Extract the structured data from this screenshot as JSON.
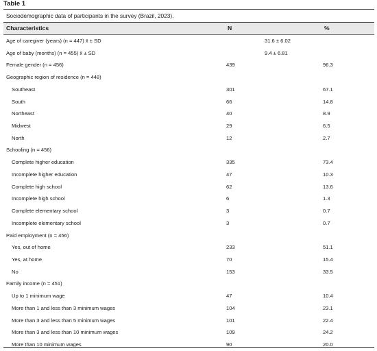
{
  "table_label": "Table 1",
  "caption": "Sociodemographic data of participants in the survey (Brazil, 2023).",
  "columns": {
    "characteristics": "Characteristics",
    "n": "N",
    "pct": "%"
  },
  "rows": [
    {
      "label": "Age of caregiver (years) (n = 447) x̄ ± SD",
      "mean": "31.6 ± 6.02"
    },
    {
      "label": "Age of baby (months) (n = 455) x̄ ± SD",
      "mean": "9.4 ± 6.81"
    },
    {
      "label": "Female gender (n = 456)",
      "n": "439",
      "pct": "96.3"
    },
    {
      "label": "Geographic region of residence (n = 448)"
    },
    {
      "label": "Southeast",
      "n": "301",
      "pct": "67.1",
      "sub": true
    },
    {
      "label": "South",
      "n": "66",
      "pct": "14.8",
      "sub": true
    },
    {
      "label": "Northeast",
      "n": "40",
      "pct": "8.9",
      "sub": true
    },
    {
      "label": "Midwest",
      "n": "29",
      "pct": "6.5",
      "sub": true
    },
    {
      "label": "North",
      "n": "12",
      "pct": "2.7",
      "sub": true
    },
    {
      "label": "Schooling (n = 456)"
    },
    {
      "label": "Complete higher education",
      "n": "335",
      "pct": "73.4",
      "sub": true
    },
    {
      "label": "Incomplete higher education",
      "n": "47",
      "pct": "10.3",
      "sub": true
    },
    {
      "label": "Complete high school",
      "n": "62",
      "pct": "13.6",
      "sub": true
    },
    {
      "label": "Incomplete high school",
      "n": "6",
      "pct": "1.3",
      "sub": true
    },
    {
      "label": "Complete elementary school",
      "n": "3",
      "pct": "0.7",
      "sub": true
    },
    {
      "label": "Incomplete elementary school",
      "n": "3",
      "pct": "0.7",
      "sub": true
    },
    {
      "label": "Paid employment (n = 456)"
    },
    {
      "label": "Yes, out of home",
      "n": "233",
      "pct": "51.1",
      "sub": true
    },
    {
      "label": "Yes, at home",
      "n": "70",
      "pct": "15.4",
      "sub": true
    },
    {
      "label": "No",
      "n": "153",
      "pct": "33.5",
      "sub": true
    },
    {
      "label": "Family income (n = 451)"
    },
    {
      "label": "Up to 1 minimum wage",
      "n": "47",
      "pct": "10.4",
      "sub": true
    },
    {
      "label": "More than 1 and less than 3 minimum wages",
      "n": "104",
      "pct": "23.1",
      "sub": true
    },
    {
      "label": "More than 3 and less than 5 minimum wages",
      "n": "101",
      "pct": "22.4",
      "sub": true
    },
    {
      "label": "More than 3 and less than 10 minimum wages",
      "n": "109",
      "pct": "24.2",
      "sub": true
    },
    {
      "label": "More than 10 minimum wages",
      "n": "90",
      "pct": "20.0",
      "sub": true
    }
  ]
}
